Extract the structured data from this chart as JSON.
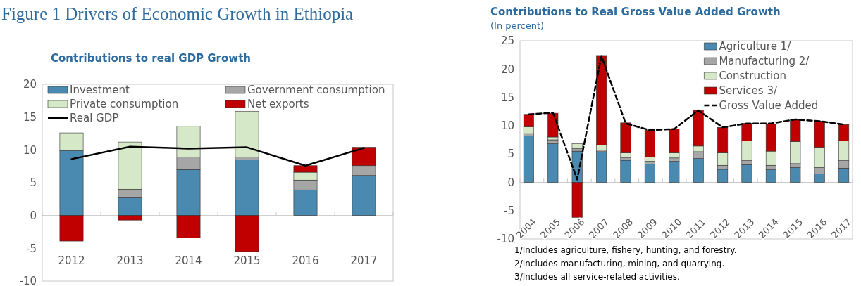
{
  "chart_data": [
    {
      "type": "bar",
      "title": "Figure 1 Drivers of Economic Growth in Ethiopia",
      "subtitle": "Contributions to real GDP Growth",
      "stacked": true,
      "categories": [
        "2012",
        "2013",
        "2014",
        "2015",
        "2016",
        "2017"
      ],
      "ylim": [
        -10,
        20
      ],
      "yticks": [
        -10,
        -5,
        0,
        5,
        10,
        15,
        20
      ],
      "legend": "top",
      "series": [
        {
          "name": "Investment",
          "color": "#4a8ab0",
          "values": [
            9.9,
            2.7,
            7.0,
            8.5,
            3.9,
            6.1
          ]
        },
        {
          "name": "Government consumption",
          "color": "#a6a6a6",
          "values": [
            null,
            1.3,
            1.9,
            0.4,
            1.5,
            1.5
          ]
        },
        {
          "name": "Private consumption",
          "color": "#d5e8c8",
          "values": [
            2.7,
            7.2,
            4.7,
            7.0,
            1.2,
            null
          ]
        },
        {
          "name": "Net exports",
          "color": "#c00000",
          "values": [
            -3.9,
            -0.7,
            -3.4,
            -5.5,
            1.0,
            2.8
          ]
        },
        {
          "name": "Real GDP",
          "type": "line",
          "color": "#000000",
          "line_style": "solid",
          "values": [
            8.6,
            10.5,
            10.2,
            10.4,
            7.6,
            10.3
          ]
        }
      ]
    },
    {
      "type": "bar",
      "title": "Contributions to Real Gross Value Added Growth",
      "subtitle": "(In percent)",
      "stacked": true,
      "categories": [
        "2004",
        "2005",
        "2006",
        "2007",
        "2008",
        "2009",
        "2010",
        "2011",
        "2012",
        "2013",
        "2014",
        "2015",
        "2016",
        "2017"
      ],
      "ylim": [
        -10,
        25
      ],
      "yticks": [
        -10,
        -5,
        0,
        5,
        10,
        15,
        20,
        25
      ],
      "legend": "top right",
      "annotations": [
        "1/Includes agriculture, fishery, hunting, and forestry.",
        "2/Includes manufacturing, mining, and quarrying.",
        "3/Includes all service-related activities."
      ],
      "series": [
        {
          "name": "Agriculture 1/",
          "color": "#4a8ab0",
          "values": [
            8.2,
            6.8,
            5.5,
            5.4,
            3.9,
            3.2,
            3.7,
            4.2,
            2.3,
            3.1,
            2.2,
            2.6,
            1.5,
            2.5
          ]
        },
        {
          "name": "Manufacturing 2/",
          "color": "#a6a6a6",
          "values": [
            0.4,
            0.7,
            0.5,
            0.3,
            0.5,
            0.5,
            0.6,
            1.2,
            0.7,
            0.8,
            0.8,
            0.7,
            1.1,
            1.4
          ]
        },
        {
          "name": "Construction",
          "color": "#d5e8c8",
          "values": [
            1.2,
            0.5,
            0.8,
            0.9,
            0.8,
            0.8,
            0.9,
            1.0,
            2.2,
            3.4,
            2.5,
            3.9,
            3.6,
            3.4
          ]
        },
        {
          "name": "Services 3/",
          "color": "#c00000",
          "values": [
            2.2,
            4.2,
            -6.2,
            15.8,
            5.3,
            4.7,
            4.2,
            6.3,
            4.5,
            3.1,
            4.8,
            3.9,
            4.6,
            2.9
          ]
        },
        {
          "name": "Gross Value Added",
          "type": "line",
          "color": "#000000",
          "line_style": "dashed",
          "values": [
            12.0,
            12.3,
            0.5,
            22.3,
            10.4,
            9.2,
            9.4,
            12.7,
            9.7,
            10.4,
            10.4,
            11.1,
            10.8,
            10.2
          ]
        }
      ]
    }
  ]
}
